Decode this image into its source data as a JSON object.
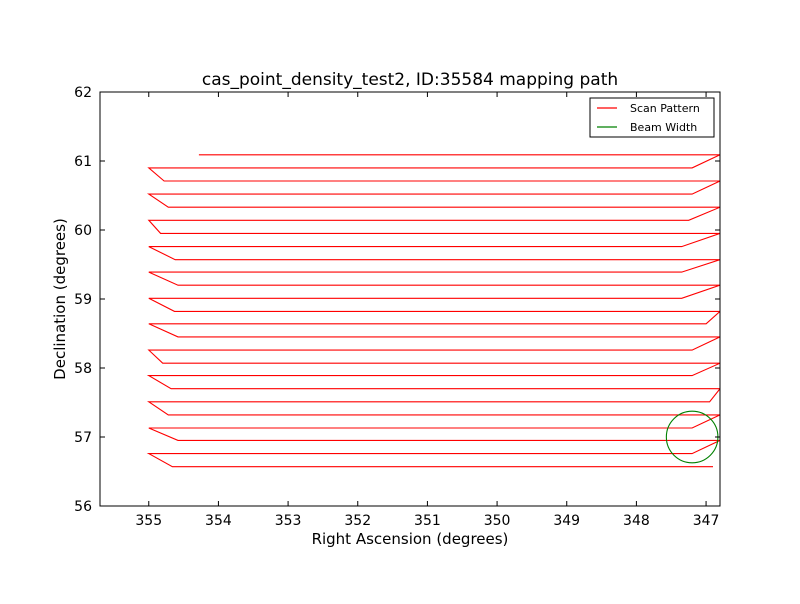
{
  "chart_data": {
    "type": "line",
    "title": "cas_point_density_test2, ID:35584 mapping path",
    "xlabel": "Right Ascension (degrees)",
    "ylabel": "Declination (degrees)",
    "xlim": [
      355.7,
      346.8
    ],
    "ylim": [
      56,
      62
    ],
    "x_inverted": true,
    "xticks": [
      355,
      354,
      353,
      352,
      351,
      350,
      349,
      348,
      347
    ],
    "yticks": [
      56,
      57,
      58,
      59,
      60,
      61,
      62
    ],
    "grid": false,
    "legend_position": "top-right",
    "series": [
      {
        "name": "Scan Pattern",
        "color": "#ff0000",
        "scan_rows": [
          {
            "dec": 61.09,
            "ra_left": 354.28,
            "ra_right": 346.8
          },
          {
            "dec": 60.9,
            "ra_left": 355.0,
            "ra_right": 347.2
          },
          {
            "dec": 60.71,
            "ra_left": 354.78,
            "ra_right": 346.8
          },
          {
            "dec": 60.52,
            "ra_left": 355.0,
            "ra_right": 347.2
          },
          {
            "dec": 60.33,
            "ra_left": 354.72,
            "ra_right": 346.8
          },
          {
            "dec": 60.14,
            "ra_left": 355.0,
            "ra_right": 347.25
          },
          {
            "dec": 59.95,
            "ra_left": 354.83,
            "ra_right": 346.8
          },
          {
            "dec": 59.76,
            "ra_left": 355.0,
            "ra_right": 347.35
          },
          {
            "dec": 59.57,
            "ra_left": 354.62,
            "ra_right": 346.8
          },
          {
            "dec": 59.39,
            "ra_left": 355.0,
            "ra_right": 347.35
          },
          {
            "dec": 59.2,
            "ra_left": 354.58,
            "ra_right": 346.8
          },
          {
            "dec": 59.01,
            "ra_left": 355.0,
            "ra_right": 347.35
          },
          {
            "dec": 58.82,
            "ra_left": 354.63,
            "ra_right": 346.8
          },
          {
            "dec": 58.64,
            "ra_left": 355.0,
            "ra_right": 347.0
          },
          {
            "dec": 58.45,
            "ra_left": 354.58,
            "ra_right": 346.8
          },
          {
            "dec": 58.26,
            "ra_left": 355.0,
            "ra_right": 347.2
          },
          {
            "dec": 58.07,
            "ra_left": 354.8,
            "ra_right": 346.8
          },
          {
            "dec": 57.89,
            "ra_left": 355.0,
            "ra_right": 347.2
          },
          {
            "dec": 57.7,
            "ra_left": 354.68,
            "ra_right": 346.8
          },
          {
            "dec": 57.51,
            "ra_left": 355.0,
            "ra_right": 346.95
          },
          {
            "dec": 57.32,
            "ra_left": 354.72,
            "ra_right": 346.8
          },
          {
            "dec": 57.13,
            "ra_left": 355.0,
            "ra_right": 347.2
          },
          {
            "dec": 56.95,
            "ra_left": 354.58,
            "ra_right": 346.8
          },
          {
            "dec": 56.76,
            "ra_left": 355.0,
            "ra_right": 347.2
          },
          {
            "dec": 56.57,
            "ra_left": 354.66,
            "ra_right": 346.9
          }
        ]
      },
      {
        "name": "Beam Width",
        "color": "#008000",
        "circle": {
          "ra": 347.2,
          "dec": 57.0,
          "radius_deg": 0.37
        }
      }
    ]
  }
}
